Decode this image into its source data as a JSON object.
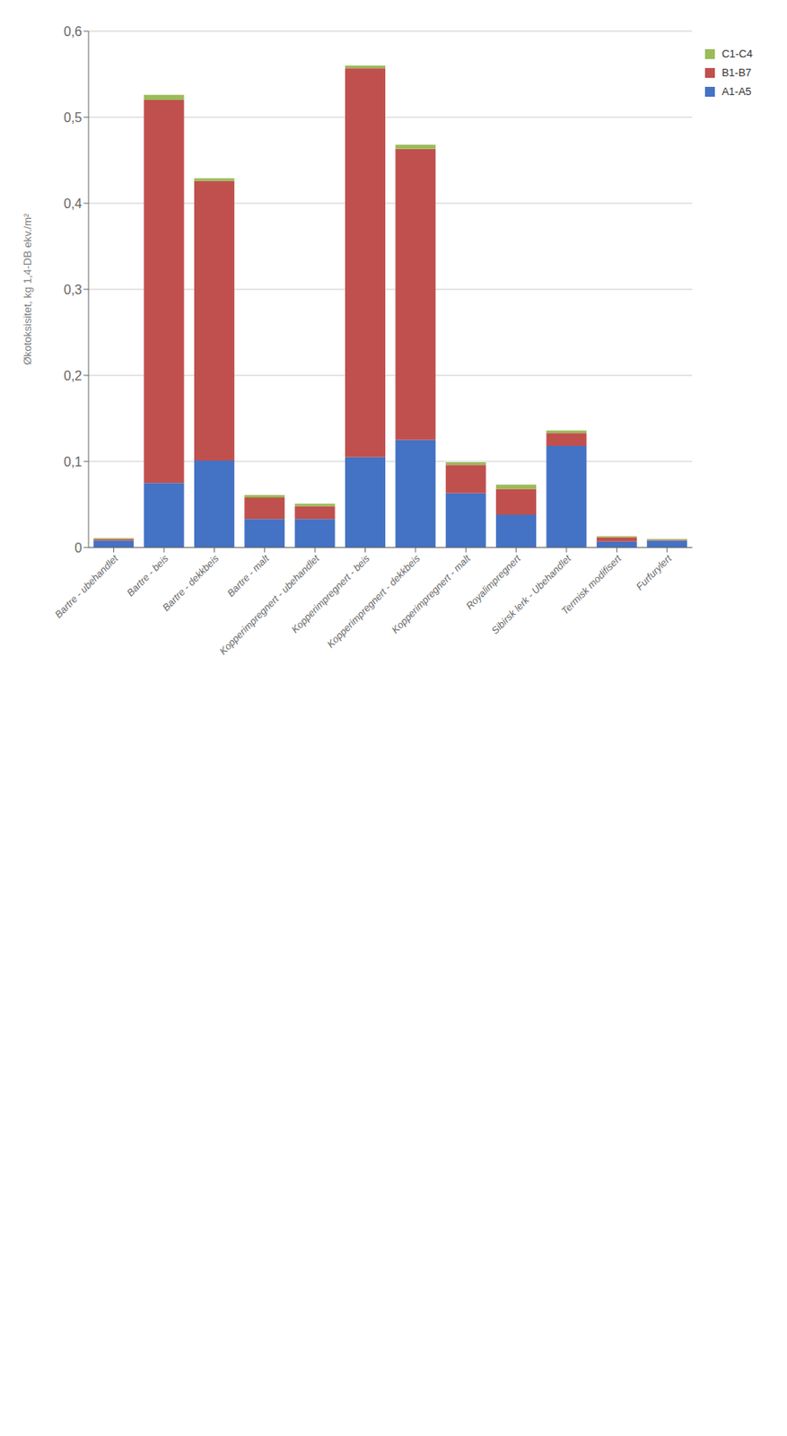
{
  "chart_data": {
    "type": "bar",
    "stacked": true,
    "ylabel": "Økotoksisitet, kg 1,4-DB ekv./m²",
    "categories": [
      "Bartre - ubehandlet",
      "Bartre - beis",
      "Bartre - dekkbeis",
      "Bartre - malt",
      "Kopperimpregnert - ubehandlet",
      "Kopperimpregnert - beis",
      "Kopperimpregnert - dekkbeis",
      "Kopperimpregnert - malt",
      "Royalimpregnert",
      "Sibirsk lerk - Ubehandlet",
      "Termisk modifisert",
      "Furfurylert"
    ],
    "series": [
      {
        "name": "A1-A5",
        "color": "#4472C4",
        "values": [
          0.008,
          0.075,
          0.101,
          0.033,
          0.033,
          0.105,
          0.125,
          0.063,
          0.038,
          0.118,
          0.007,
          0.008
        ]
      },
      {
        "name": "B1-B7",
        "color": "#C0504D",
        "values": [
          0.002,
          0.445,
          0.325,
          0.025,
          0.015,
          0.452,
          0.338,
          0.033,
          0.03,
          0.015,
          0.005,
          0.001
        ]
      },
      {
        "name": "C1-C4",
        "color": "#9BBB59",
        "values": [
          0.001,
          0.006,
          0.003,
          0.003,
          0.003,
          0.003,
          0.005,
          0.003,
          0.005,
          0.003,
          0.001,
          0.001
        ]
      }
    ],
    "ylim": [
      0,
      0.6
    ],
    "yticks": [
      0,
      {
        "value": 0.1,
        "label": "0,1"
      },
      {
        "value": 0.2,
        "label": "0,2"
      },
      {
        "value": 0.3,
        "label": "0,3"
      },
      {
        "value": 0.4,
        "label": "0,4"
      },
      {
        "value": 0.5,
        "label": "0,5"
      },
      {
        "value": 0.6,
        "label": "0,6"
      }
    ],
    "grid": true,
    "legend": "right"
  }
}
